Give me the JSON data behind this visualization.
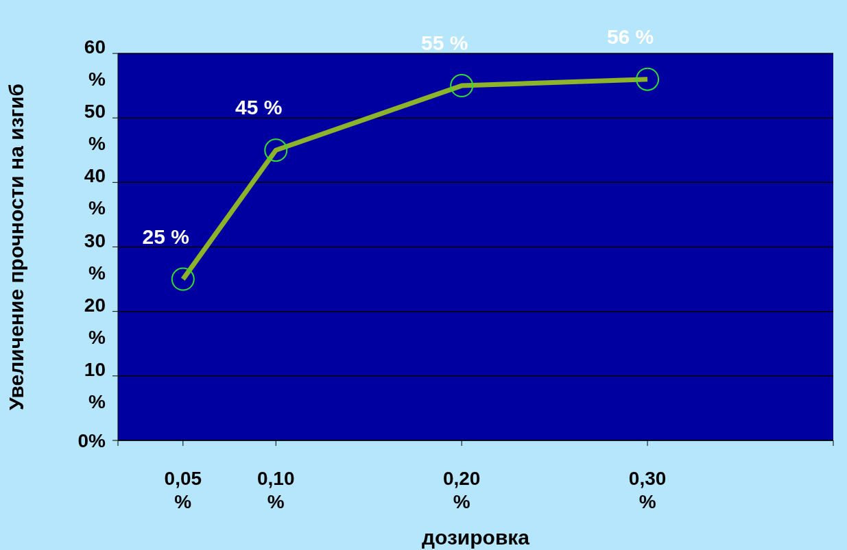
{
  "chart_data": {
    "type": "line",
    "xlabel": "дозировка",
    "ylabel": "Увеличение прочности на изгиб",
    "x": [
      0.05,
      0.1,
      0.2,
      0.3
    ],
    "series": [
      {
        "color": "#8db32b",
        "values": [
          25,
          45,
          55,
          56
        ],
        "value_labels": [
          "25 %",
          "45 %",
          "55 %",
          "56 %"
        ]
      }
    ],
    "xlim": [
      0.015,
      0.4
    ],
    "xticks": [
      {
        "value": 0.015,
        "label": null
      },
      {
        "value": 0.05,
        "label": "0,05 %"
      },
      {
        "value": 0.1,
        "label": "0,10 %"
      },
      {
        "value": 0.2,
        "label": "0,20 %"
      },
      {
        "value": 0.3,
        "label": "0,30 %"
      },
      {
        "value": 0.4,
        "label": null
      }
    ],
    "ylim": [
      0,
      60
    ],
    "yticks": [
      {
        "value": 0,
        "label": "0%"
      },
      {
        "value": 10,
        "label": "10 %"
      },
      {
        "value": 20,
        "label": "20 %"
      },
      {
        "value": 30,
        "label": "30 %"
      },
      {
        "value": 40,
        "label": "40 %"
      },
      {
        "value": 50,
        "label": "50 %"
      },
      {
        "value": 60,
        "label": "60 %"
      }
    ],
    "grid": "y",
    "marker": "circle",
    "line_style": "solid"
  }
}
